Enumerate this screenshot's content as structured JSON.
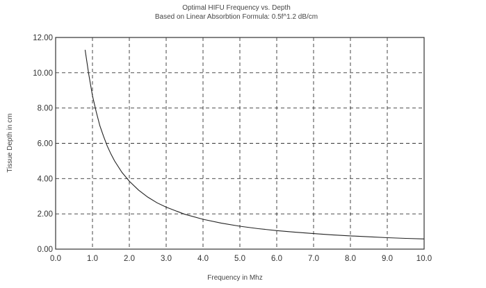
{
  "chart_data": {
    "type": "line",
    "title": "Optimal HIFU Frequency vs. Depth",
    "subtitle": "Based on Linear Absorbtion Formula: 0.5f^1.2 dB/cm",
    "xlabel": "Frequency in Mhz",
    "ylabel": "Tissue Depth in cm",
    "xlim": [
      0,
      10
    ],
    "ylim": [
      0,
      12
    ],
    "xticks": [
      "0.0",
      "1.0",
      "2.0",
      "3.0",
      "4.0",
      "5.0",
      "6.0",
      "7.0",
      "8.0",
      "9.0",
      "10.0"
    ],
    "yticks": [
      "0.00",
      "2.00",
      "4.00",
      "6.00",
      "8.00",
      "10.00",
      "12.00"
    ],
    "grid": true,
    "legend": "none",
    "line_color": "#222222",
    "grid_color": "#333333",
    "series": [
      {
        "x": [
          0.8,
          0.9,
          1.0,
          1.1,
          1.2,
          1.3,
          1.4,
          1.5,
          1.6,
          1.8,
          2.0,
          2.25,
          2.5,
          2.75,
          3.0,
          3.5,
          4.0,
          4.5,
          5.0,
          5.5,
          6.0,
          6.5,
          7.0,
          7.5,
          8.0,
          8.5,
          9.0,
          9.5,
          10.0
        ],
        "y": [
          11.3,
          9.9,
          8.7,
          7.8,
          7.0,
          6.4,
          5.85,
          5.4,
          5.0,
          4.35,
          3.85,
          3.35,
          2.95,
          2.63,
          2.38,
          1.98,
          1.69,
          1.47,
          1.3,
          1.16,
          1.05,
          0.96,
          0.88,
          0.81,
          0.75,
          0.7,
          0.65,
          0.61,
          0.58
        ]
      }
    ]
  }
}
